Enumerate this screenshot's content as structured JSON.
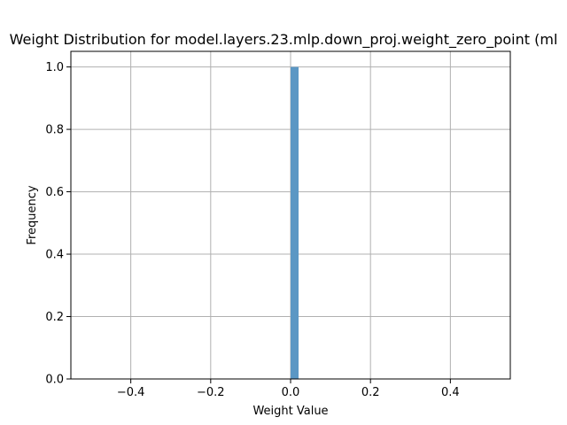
{
  "chart_data": {
    "type": "bar",
    "title": "Weight Distribution for model.layers.23.mlp.down_proj.weight_zero_point (ml",
    "xlabel": "Weight Value",
    "ylabel": "Frequency",
    "xlim": [
      -0.55,
      0.55
    ],
    "ylim": [
      0,
      1.05
    ],
    "x_ticks": [
      -0.4,
      -0.2,
      0.0,
      0.2,
      0.4
    ],
    "x_tick_labels": [
      "−0.4",
      "−0.2",
      "0.0",
      "0.2",
      "0.4"
    ],
    "y_ticks": [
      0.0,
      0.2,
      0.4,
      0.6,
      0.8,
      1.0
    ],
    "y_tick_labels": [
      "0.0",
      "0.2",
      "0.4",
      "0.6",
      "0.8",
      "1.0"
    ],
    "grid": true,
    "bars": [
      {
        "x_start": 0.0,
        "x_end": 0.02,
        "value": 1.0
      }
    ],
    "bar_color": "#5b97c4",
    "grid_color": "#b0b0b0",
    "axis_color": "#000000"
  }
}
